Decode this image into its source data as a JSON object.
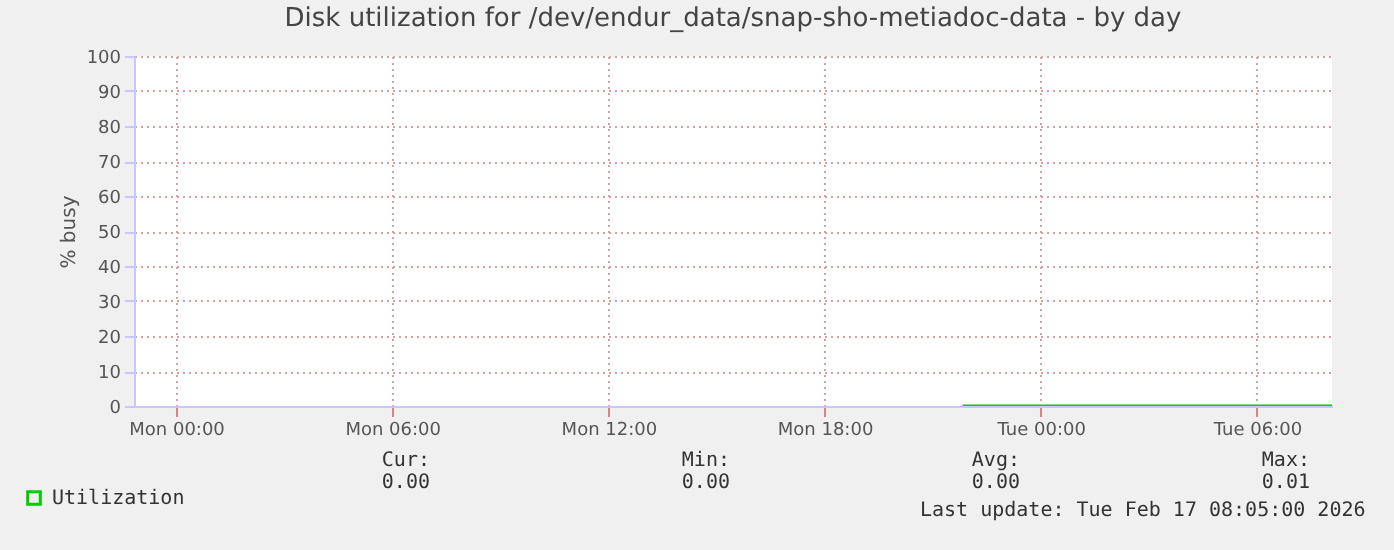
{
  "chart_data": {
    "type": "line",
    "title": "Disk utilization for /dev/endur_data/snap-sho-metiadoc-data - by day",
    "ylabel": "% busy",
    "x": [
      "2026-02-16T21:50",
      "2026-02-16T23:00",
      "2026-02-17T01:00",
      "2026-02-17T03:00",
      "2026-02-17T05:00",
      "2026-02-17T07:00",
      "2026-02-17T08:05"
    ],
    "series": [
      {
        "name": "Utilization",
        "color": "#00cc00",
        "values": [
          0,
          0,
          0,
          0,
          0,
          0,
          0
        ]
      }
    ],
    "xlim": [
      "2026-02-15T22:50",
      "2026-02-17T08:05"
    ],
    "xticks": [
      {
        "value": "2026-02-16T00:00",
        "label": "Mon 00:00"
      },
      {
        "value": "2026-02-16T06:00",
        "label": "Mon 06:00"
      },
      {
        "value": "2026-02-16T12:00",
        "label": "Mon 12:00"
      },
      {
        "value": "2026-02-16T18:00",
        "label": "Mon 18:00"
      },
      {
        "value": "2026-02-17T00:00",
        "label": "Tue 00:00"
      },
      {
        "value": "2026-02-17T06:00",
        "label": "Tue 06:00"
      }
    ],
    "ylim": [
      0,
      100
    ],
    "yticks": [
      0,
      10,
      20,
      30,
      40,
      50,
      60,
      70,
      80,
      90,
      100
    ],
    "grid": true,
    "legend": "bottom left",
    "marker": "none",
    "line_style": "solid",
    "annotations": [
      "Cur: 0.00",
      "Min: 0.00",
      "Avg: 0.00",
      "Max: 0.01",
      "Last update: Tue Feb 17 08:05:00 2026"
    ]
  }
}
